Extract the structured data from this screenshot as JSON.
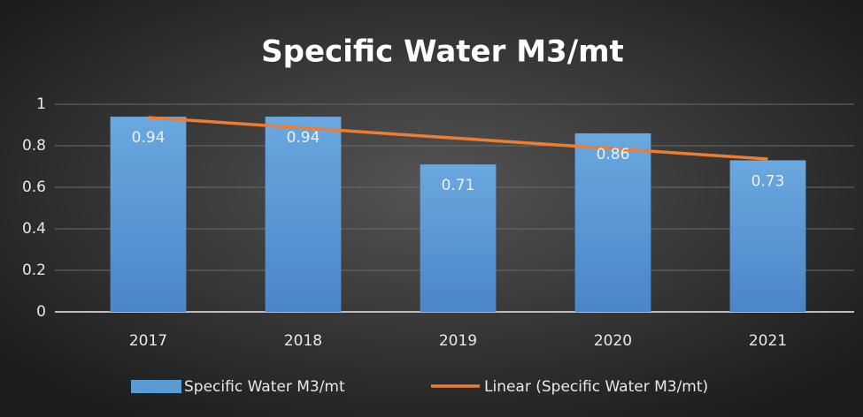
{
  "chart_data": {
    "type": "bar",
    "title": "Specific Water M3/mt",
    "categories": [
      "2017",
      "2018",
      "2019",
      "2020",
      "2021"
    ],
    "series": [
      {
        "name": "Specific Water M3/mt",
        "color": "#5b9bd5",
        "type": "bar",
        "values": [
          0.94,
          0.94,
          0.71,
          0.86,
          0.73
        ]
      },
      {
        "name": "Linear (Specific Water M3/mt)",
        "color": "#ed7d31",
        "type": "line",
        "values": [
          0.936,
          0.886,
          0.836,
          0.786,
          0.736
        ]
      }
    ],
    "ylim": [
      0,
      1
    ],
    "yticks": [
      0,
      0.2,
      0.4,
      0.6,
      0.8,
      1
    ],
    "grid": true,
    "legend": "bottom"
  }
}
